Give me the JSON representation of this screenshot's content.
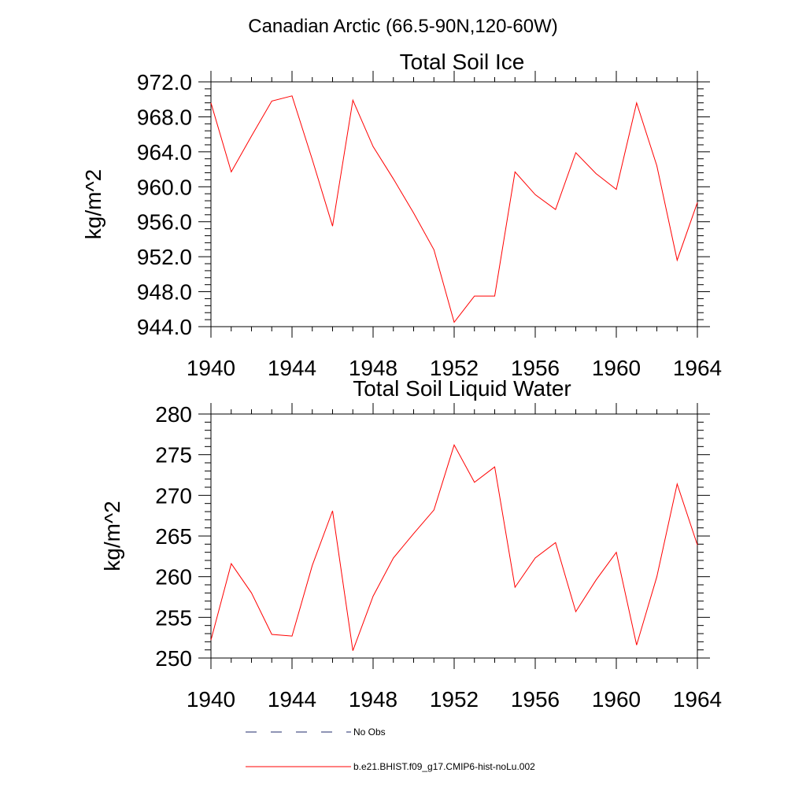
{
  "page": {
    "main_title": "Canadian Arctic (66.5-90N,120-60W)"
  },
  "chart_data": [
    {
      "type": "line",
      "title": "Total Soil Ice",
      "xlabel": "",
      "ylabel": "kg/m^2",
      "xlim": [
        1940,
        1964
      ],
      "ylim": [
        944,
        972
      ],
      "x_ticks": [
        1940,
        1944,
        1948,
        1952,
        1956,
        1960,
        1964
      ],
      "y_ticks": [
        944.0,
        948.0,
        952.0,
        956.0,
        960.0,
        964.0,
        968.0,
        972.0
      ],
      "y_tick_labels": [
        "944.0",
        "948.0",
        "952.0",
        "956.0",
        "960.0",
        "964.0",
        "968.0",
        "972.0"
      ],
      "grid": false,
      "series": [
        {
          "name": "b.e21.BHIST.f09_g17.CMIP6-hist-noLu.002",
          "color": "#ff0000",
          "x": [
            1940,
            1941,
            1942,
            1943,
            1944,
            1945,
            1946,
            1947,
            1948,
            1949,
            1950,
            1951,
            1952,
            1953,
            1954,
            1955,
            1956,
            1957,
            1958,
            1959,
            1960,
            1961,
            1962,
            1963,
            1964
          ],
          "values": [
            969.6,
            961.7,
            965.8,
            969.8,
            970.4,
            963.1,
            955.5,
            969.9,
            964.6,
            960.9,
            957.0,
            952.8,
            944.5,
            947.5,
            947.5,
            961.7,
            959.1,
            957.4,
            963.9,
            961.5,
            959.7,
            969.6,
            962.4,
            951.6,
            958.2
          ]
        }
      ]
    },
    {
      "type": "line",
      "title": "Total Soil Liquid Water",
      "xlabel": "",
      "ylabel": "kg/m^2",
      "xlim": [
        1940,
        1964
      ],
      "ylim": [
        250,
        280
      ],
      "x_ticks": [
        1940,
        1944,
        1948,
        1952,
        1956,
        1960,
        1964
      ],
      "y_ticks": [
        250,
        255,
        260,
        265,
        270,
        275,
        280
      ],
      "y_tick_labels": [
        "250",
        "255",
        "260",
        "265",
        "270",
        "275",
        "280"
      ],
      "grid": false,
      "series": [
        {
          "name": "b.e21.BHIST.f09_g17.CMIP6-hist-noLu.002",
          "color": "#ff0000",
          "x": [
            1940,
            1941,
            1942,
            1943,
            1944,
            1945,
            1946,
            1947,
            1948,
            1949,
            1950,
            1951,
            1952,
            1953,
            1954,
            1955,
            1956,
            1957,
            1958,
            1959,
            1960,
            1961,
            1962,
            1963,
            1964
          ],
          "values": [
            252.2,
            261.6,
            258.0,
            252.9,
            252.7,
            261.4,
            268.1,
            250.9,
            257.6,
            262.3,
            265.3,
            268.2,
            276.2,
            271.6,
            273.5,
            258.7,
            262.3,
            264.2,
            255.7,
            259.6,
            263.0,
            251.6,
            260.0,
            271.4,
            263.9
          ]
        }
      ]
    }
  ],
  "legend": {
    "position": "bottom",
    "items": [
      {
        "label": "No Obs",
        "style": "dashed",
        "color": "#1f2a6b"
      },
      {
        "label": "b.e21.BHIST.f09_g17.CMIP6-hist-noLu.002",
        "style": "solid",
        "color": "#ff0000"
      }
    ]
  }
}
